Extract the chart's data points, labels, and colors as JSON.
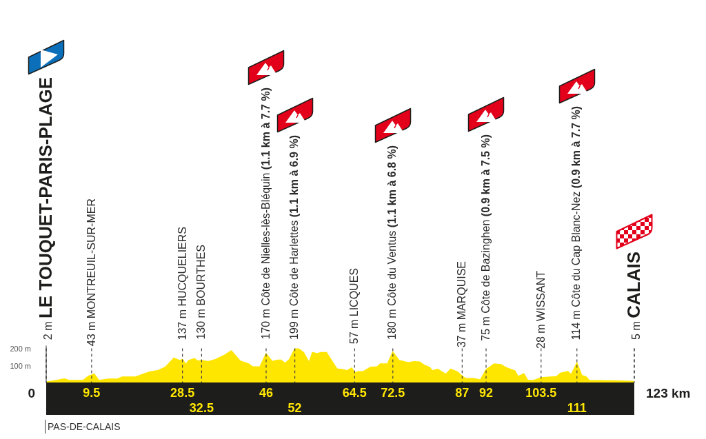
{
  "chart_data": {
    "type": "area",
    "color": "#ffe600",
    "x": [
      0,
      1.5,
      3.8,
      4.8,
      7.7,
      8.9,
      9.5,
      10,
      11,
      13,
      14.9,
      15.9,
      18.7,
      21.6,
      23.5,
      25,
      26.7,
      27.9,
      28.5,
      29.2,
      29.8,
      31,
      31.7,
      32.5,
      33.9,
      35.5,
      37.5,
      38.7,
      40.6,
      42.3,
      43.2,
      44.7,
      46,
      47.3,
      48,
      49,
      50,
      50.9,
      52,
      52.8,
      53.8,
      55,
      55.7,
      56.7,
      57.4,
      58.6,
      60.8,
      62.2,
      62.9,
      63.9,
      64.5,
      65.3,
      66.3,
      67.8,
      69.2,
      69.9,
      71.4,
      72.5,
      73.8,
      75.7,
      76.9,
      78.1,
      79,
      80.2,
      80.7,
      81.9,
      83.6,
      84.6,
      86,
      87,
      87.7,
      89.4,
      90.8,
      91.5,
      92,
      93.7,
      95.1,
      96.1,
      98,
      98.7,
      99.9,
      100.7,
      101.9,
      103.5,
      106.7,
      107.6,
      109.1,
      109.8,
      111,
      112,
      112.9,
      113.6,
      120,
      123
    ],
    "values": [
      2,
      8,
      20,
      11,
      11,
      37,
      43,
      50,
      11,
      20,
      20,
      32,
      32,
      62,
      71,
      92,
      144,
      130,
      137,
      105,
      130,
      141,
      126,
      130,
      123,
      137,
      165,
      188,
      126,
      110,
      92,
      92,
      170,
      123,
      130,
      133,
      114,
      137,
      199,
      199,
      178,
      117,
      178,
      171,
      178,
      178,
      80,
      75,
      69,
      85,
      57,
      64,
      64,
      89,
      92,
      110,
      110,
      180,
      130,
      117,
      123,
      121,
      103,
      89,
      69,
      78,
      48,
      78,
      62,
      37,
      23,
      23,
      14,
      48,
      75,
      110,
      106,
      89,
      69,
      34,
      51,
      11,
      11,
      28,
      34,
      55,
      64,
      45,
      114,
      41,
      32,
      11,
      8,
      5
    ],
    "xlim": [
      0,
      123
    ],
    "xticks": [
      9.5,
      28.5,
      46,
      64.5,
      72.5,
      87,
      92,
      103.5
    ],
    "x2lim": [
      0,
      123
    ],
    "x2ticks": [
      32.5,
      52,
      111
    ],
    "ylim": [
      0,
      220
    ],
    "yticks": [
      {
        "value": 100,
        "label": "100 m"
      },
      {
        "value": 200,
        "label": "200 m"
      }
    ],
    "grid": "x",
    "annotations": [
      {
        "text": "2 m LE TOUQUET-PARIS-PLAGE",
        "x": 0,
        "y": 2
      },
      {
        "text": "43 m MONTREUIL-SUR-MER",
        "x": 9.5,
        "y": 43
      },
      {
        "text": "137 m HUCQUELIERS",
        "x": 28.5,
        "y": 137
      },
      {
        "text": "130 m BOURTHES",
        "x": 32.5,
        "y": 130
      },
      {
        "text": "170 m Côte de Nielles-lès-Bléquin (1.1 km à 7.7 %)",
        "x": 46,
        "y": 170
      },
      {
        "text": "199 m Côte de Harlettes (1.1 km à 6.9 %)",
        "x": 52,
        "y": 199
      },
      {
        "text": "57 m LICQUES",
        "x": 64.5,
        "y": 57
      },
      {
        "text": "180 m Côte du Ventus (1.1 km à 6.8 %)",
        "x": 72.5,
        "y": 180
      },
      {
        "text": "37 m MARQUISE",
        "x": 87,
        "y": 37
      },
      {
        "text": "75 m Côte de Bazinghen (0.9 km à 7.5 %)",
        "x": 92,
        "y": 75
      },
      {
        "text": "28 m WISSANT",
        "x": 103.5,
        "y": 28
      },
      {
        "text": "114 m Côte du Cap Blanc-Nez (0.9 km à 7.7 %)",
        "x": 111,
        "y": 114
      },
      {
        "text": "5 m CALAIS",
        "x": 123,
        "y": 5
      },
      "0",
      "123 km",
      "PAS-DE-CALAIS"
    ]
  }
}
